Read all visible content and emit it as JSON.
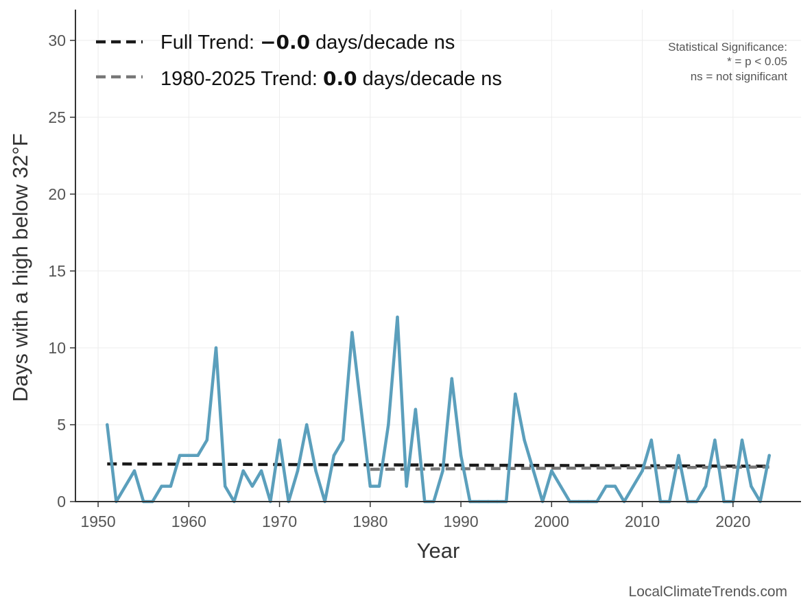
{
  "chart_data": {
    "type": "line",
    "xlabel": "Year",
    "ylabel": "Days with a high below 32°F",
    "xlim": [
      1947.5,
      2027.5
    ],
    "ylim": [
      0,
      32
    ],
    "x_ticks": [
      1950,
      1960,
      1970,
      1980,
      1990,
      2000,
      2010,
      2020
    ],
    "y_ticks": [
      0,
      5,
      10,
      15,
      20,
      25,
      30
    ],
    "grid": true,
    "series": [
      {
        "color": "#5b9fbc",
        "x": [
          1951,
          1952,
          1953,
          1954,
          1955,
          1956,
          1957,
          1958,
          1959,
          1960,
          1961,
          1962,
          1963,
          1964,
          1965,
          1966,
          1967,
          1968,
          1969,
          1970,
          1971,
          1972,
          1973,
          1974,
          1975,
          1976,
          1977,
          1978,
          1979,
          1980,
          1981,
          1982,
          1983,
          1984,
          1985,
          1986,
          1987,
          1988,
          1989,
          1990,
          1991,
          1992,
          1993,
          1994,
          1995,
          1996,
          1997,
          1998,
          1999,
          2000,
          2001,
          2002,
          2003,
          2004,
          2005,
          2006,
          2007,
          2008,
          2009,
          2010,
          2011,
          2012,
          2013,
          2014,
          2015,
          2016,
          2017,
          2018,
          2019,
          2020,
          2021,
          2022,
          2023,
          2024
        ],
        "values": [
          5,
          0,
          1,
          2,
          0,
          0,
          1,
          1,
          3,
          3,
          3,
          4,
          10,
          1,
          0,
          2,
          1,
          2,
          0,
          4,
          0,
          2,
          5,
          2,
          0,
          3,
          4,
          11,
          6,
          1,
          1,
          5,
          12,
          1,
          6,
          0,
          0,
          2,
          8,
          3,
          0,
          0,
          0,
          0,
          0,
          7,
          4,
          2,
          0,
          2,
          1,
          0,
          0,
          0,
          0,
          1,
          1,
          0,
          1,
          2,
          4,
          0,
          0,
          3,
          0,
          0,
          1,
          4,
          0,
          0,
          4,
          1,
          0,
          3
        ]
      }
    ],
    "trends": [
      {
        "label_prefix": "Full Trend: ",
        "label_value": "−0.0",
        "label_suffix": " days/decade ns",
        "color": "#1a1a1a",
        "x": [
          1951,
          2024
        ],
        "values": [
          2.45,
          2.3
        ]
      },
      {
        "label_prefix": "1980-2025 Trend: ",
        "label_value": "0.0",
        "label_suffix": " days/decade ns",
        "color": "#777777",
        "x": [
          1980,
          2024
        ],
        "values": [
          2.1,
          2.25
        ]
      }
    ],
    "legend_position": "top-left",
    "annotation": {
      "lines": [
        "Statistical Significance:",
        "* = p < 0.05",
        "ns = not significant"
      ],
      "position": "top-right"
    },
    "credit": "LocalClimateTrends.com"
  }
}
